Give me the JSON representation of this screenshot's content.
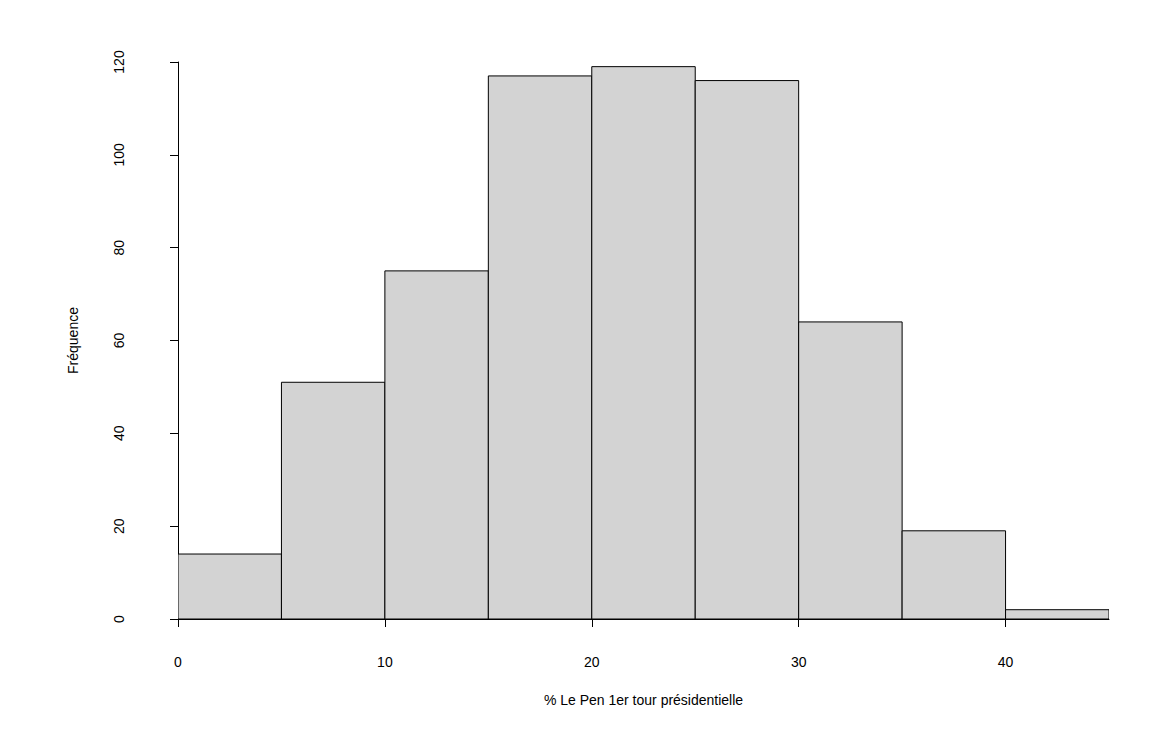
{
  "chart_data": {
    "type": "histogram",
    "xlabel": "% Le Pen 1er tour présidentielle",
    "ylabel": "Fréquence",
    "bins": [
      0,
      5,
      10,
      15,
      20,
      25,
      30,
      35,
      40,
      45
    ],
    "values": [
      14,
      51,
      75,
      117,
      119,
      116,
      64,
      19,
      2
    ],
    "color": "#d3d3d3",
    "xlim": [
      0,
      45
    ],
    "ylim": [
      0,
      120
    ],
    "xticks": [
      0,
      10,
      20,
      30,
      40
    ],
    "yticks": [
      0,
      20,
      40,
      60,
      80,
      100,
      120
    ],
    "grid": false
  }
}
